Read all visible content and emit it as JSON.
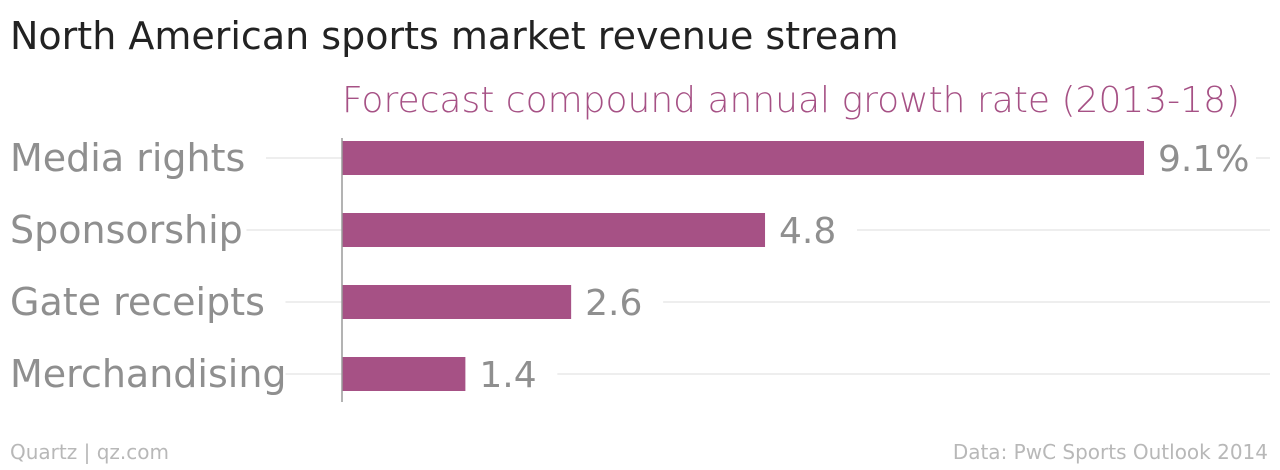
{
  "title": "North American sports market revenue stream",
  "colors": {
    "bar": "#a65185",
    "subtitle": "#a65185",
    "category_label": "#8f8f8f",
    "value_label": "#8f8f8f",
    "gridline": "#e8e8e8",
    "axis": "#9a9a9a",
    "footer": "#b8b8b8"
  },
  "footer": {
    "source_left": "Quartz | qz.com",
    "source_right": "Data: PwC Sports Outlook 2014"
  },
  "chart_data": {
    "type": "bar",
    "orientation": "horizontal",
    "title": "North American sports market revenue stream",
    "subtitle": "Forecast compound annual growth rate (2013-18)",
    "categories": [
      "Media rights",
      "Sponsorship",
      "Gate receipts",
      "Merchandising"
    ],
    "values": [
      9.1,
      4.8,
      2.6,
      1.4
    ],
    "value_labels": [
      "9.1%",
      "4.8",
      "2.6",
      "1.4"
    ],
    "xlim": [
      0,
      9.1
    ],
    "grid": true,
    "legend": "none"
  }
}
